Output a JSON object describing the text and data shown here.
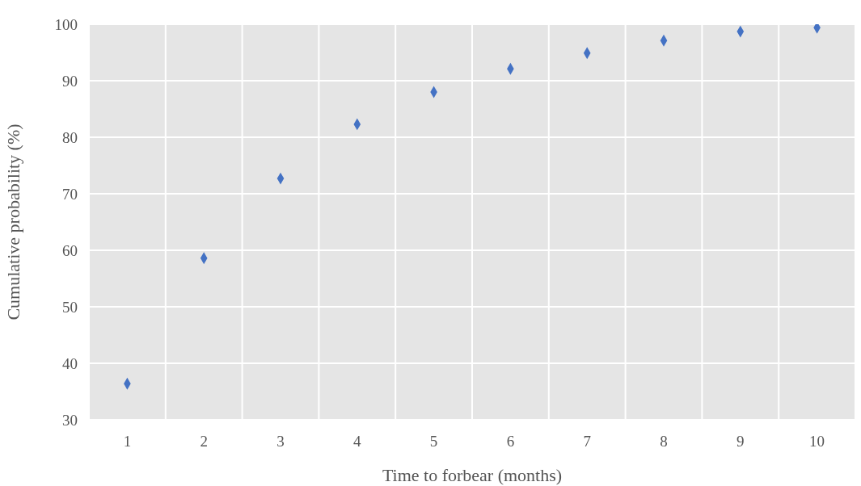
{
  "chart_data": {
    "type": "scatter",
    "xlabel": "Time to forbear (months)",
    "ylabel": "Cumulative probability (%)",
    "categories": [
      "1",
      "2",
      "3",
      "4",
      "5",
      "6",
      "7",
      "8",
      "9",
      "10"
    ],
    "series": [
      {
        "color": "#4472c4",
        "values": [
          36.4,
          58.6,
          72.7,
          82.3,
          88.0,
          92.1,
          94.9,
          97.1,
          98.7,
          99.4
        ]
      }
    ],
    "ylim": [
      30,
      100
    ],
    "yticks": [
      30,
      40,
      50,
      60,
      70,
      80,
      90,
      100
    ],
    "grid": true,
    "marker": "diamond",
    "legend": false
  }
}
